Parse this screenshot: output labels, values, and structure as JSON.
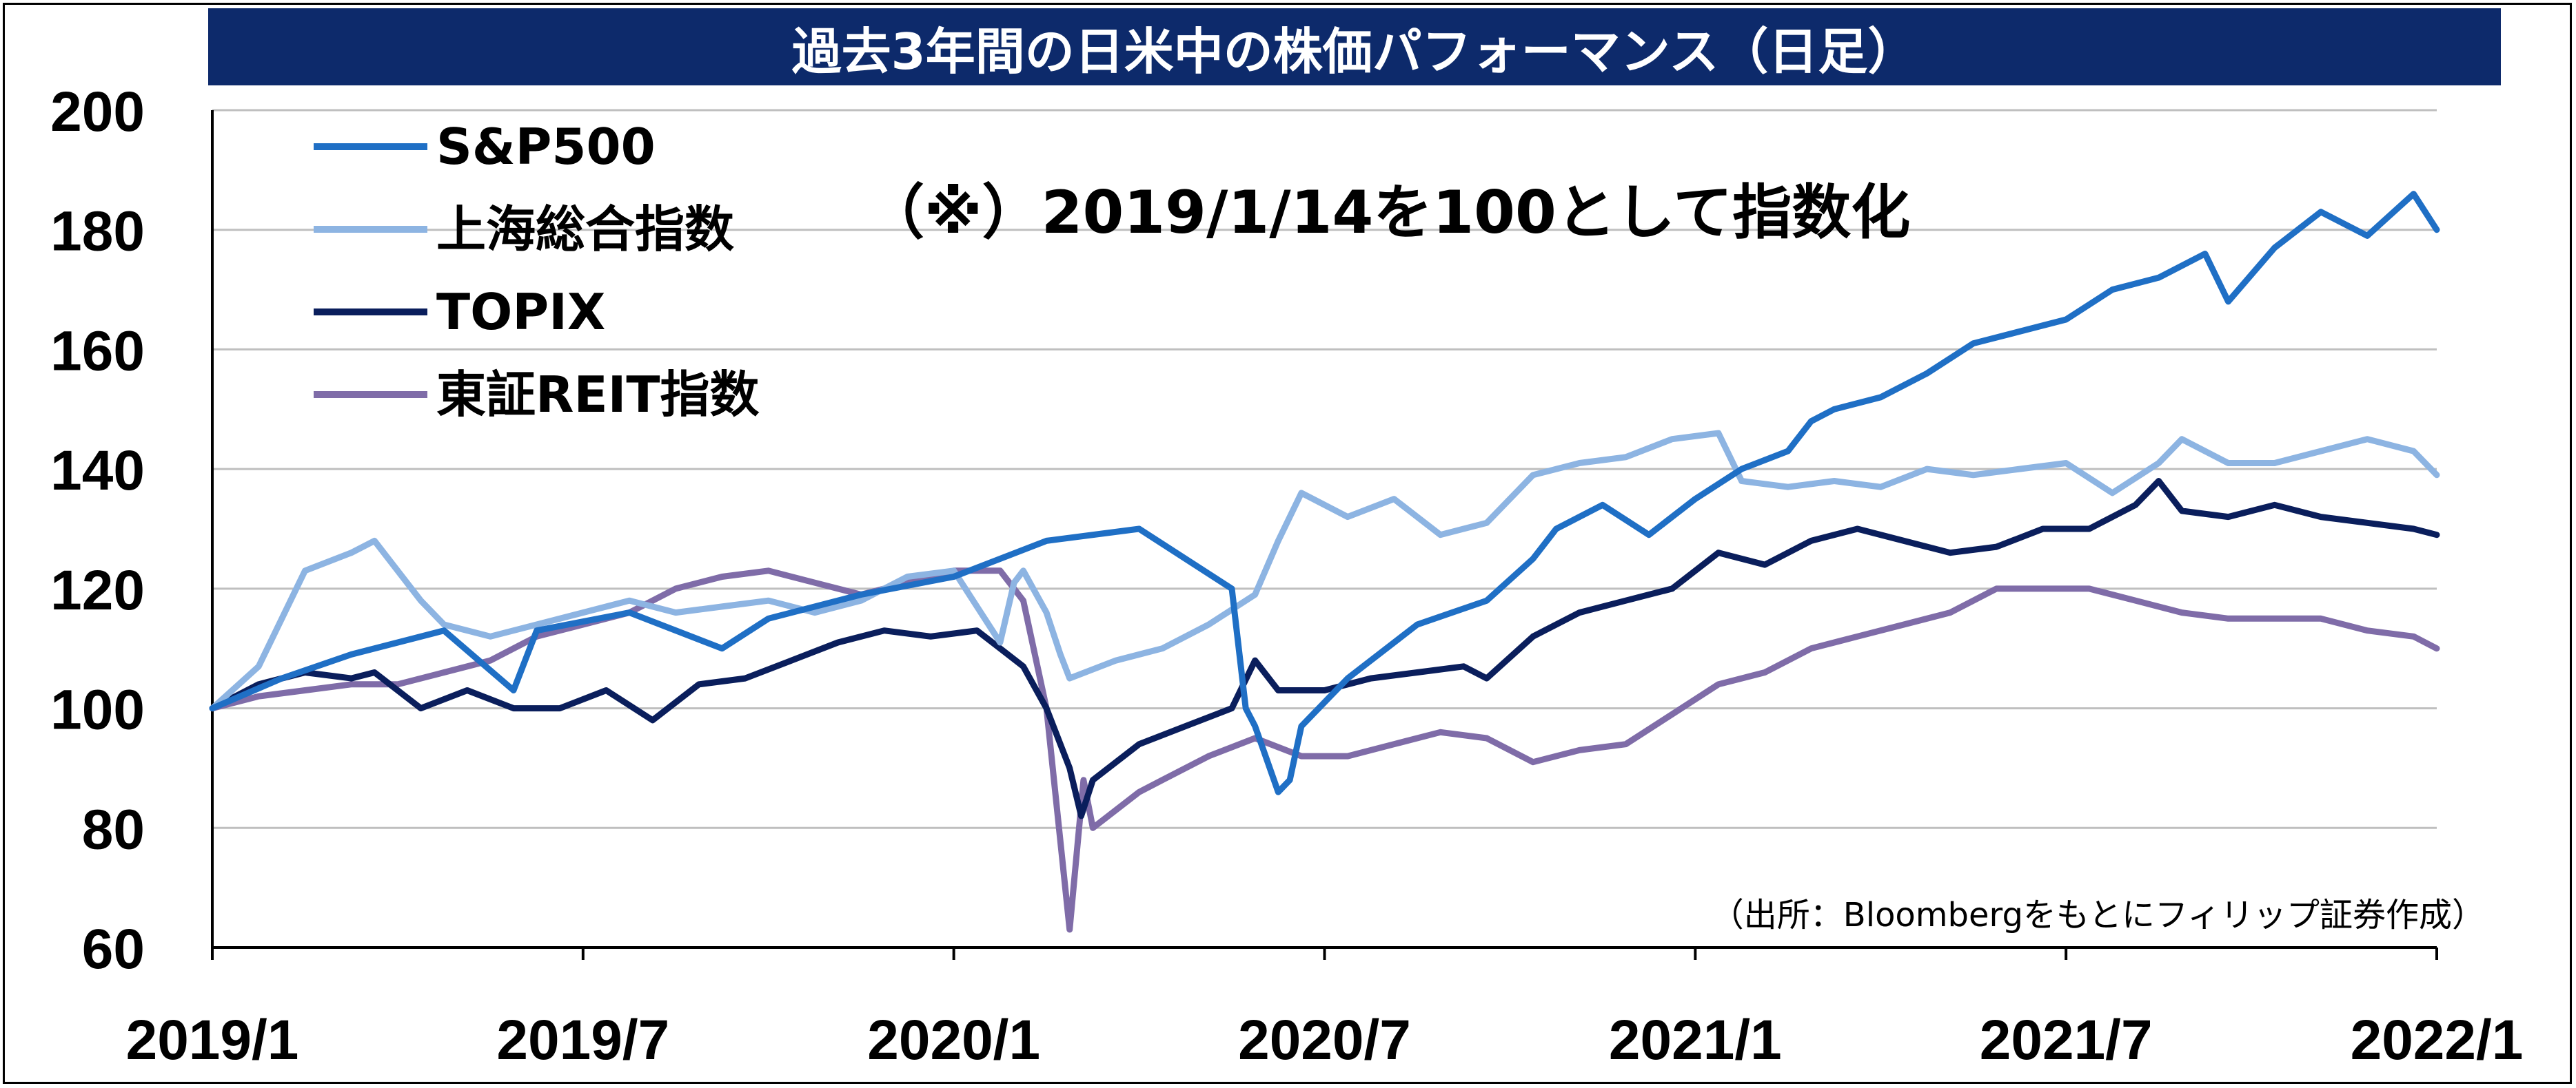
{
  "chart_data": {
    "type": "line",
    "title": "過去3年間の日米中の株価パフォーマンス（日足）",
    "annotation": "（※）2019/1/14を100として指数化",
    "source": "（出所：Bloombergをもとにフィリップ証券作成）",
    "ylim": [
      60,
      200
    ],
    "yticks": [
      "200",
      "180",
      "160",
      "140",
      "120",
      "100",
      "80",
      "60"
    ],
    "xticks": [
      "2019/1",
      "2019/7",
      "2020/1",
      "2020/7",
      "2021/1",
      "2021/7",
      "2022/1"
    ],
    "xlim": [
      "2019/1",
      "2022/1"
    ],
    "grid": "horizontal",
    "legend_position": "top-left",
    "series": [
      {
        "name": "S&P500",
        "color": "#1f6fc5",
        "points": [
          [
            0,
            100
          ],
          [
            3,
            105
          ],
          [
            6,
            109
          ],
          [
            10,
            113
          ],
          [
            13,
            103
          ],
          [
            14,
            113
          ],
          [
            18,
            116
          ],
          [
            22,
            110
          ],
          [
            24,
            115
          ],
          [
            28,
            119
          ],
          [
            32,
            122
          ],
          [
            36,
            128
          ],
          [
            40,
            130
          ],
          [
            44,
            120
          ],
          [
            44.6,
            100
          ],
          [
            45,
            97
          ],
          [
            46,
            86
          ],
          [
            46.5,
            88
          ],
          [
            47,
            97
          ],
          [
            49,
            105
          ],
          [
            52,
            114
          ],
          [
            55,
            118
          ],
          [
            57,
            125
          ],
          [
            58,
            130
          ],
          [
            60,
            134
          ],
          [
            62,
            129
          ],
          [
            64,
            135
          ],
          [
            66,
            140
          ],
          [
            68,
            143
          ],
          [
            69,
            148
          ],
          [
            70,
            150
          ],
          [
            72,
            152
          ],
          [
            74,
            156
          ],
          [
            76,
            161
          ],
          [
            78,
            163
          ],
          [
            80,
            165
          ],
          [
            82,
            170
          ],
          [
            84,
            172
          ],
          [
            86,
            176
          ],
          [
            87,
            168
          ],
          [
            89,
            177
          ],
          [
            91,
            183
          ],
          [
            93,
            179
          ],
          [
            95,
            186
          ],
          [
            96,
            180
          ]
        ]
      },
      {
        "name": "上海総合指数",
        "color": "#8db4e2",
        "points": [
          [
            0,
            100
          ],
          [
            2,
            107
          ],
          [
            4,
            123
          ],
          [
            6,
            126
          ],
          [
            7,
            128
          ],
          [
            9,
            118
          ],
          [
            10,
            114
          ],
          [
            12,
            112
          ],
          [
            14,
            114
          ],
          [
            16,
            116
          ],
          [
            18,
            118
          ],
          [
            20,
            116
          ],
          [
            22,
            117
          ],
          [
            24,
            118
          ],
          [
            26,
            116
          ],
          [
            28,
            118
          ],
          [
            30,
            122
          ],
          [
            32,
            123
          ],
          [
            34,
            111
          ],
          [
            34.6,
            121
          ],
          [
            35,
            123
          ],
          [
            36,
            116
          ],
          [
            36.6,
            109
          ],
          [
            37,
            105
          ],
          [
            39,
            108
          ],
          [
            41,
            110
          ],
          [
            43,
            114
          ],
          [
            45,
            119
          ],
          [
            46,
            128
          ],
          [
            47,
            136
          ],
          [
            49,
            132
          ],
          [
            51,
            135
          ],
          [
            53,
            129
          ],
          [
            55,
            131
          ],
          [
            57,
            139
          ],
          [
            59,
            141
          ],
          [
            61,
            142
          ],
          [
            63,
            145
          ],
          [
            65,
            146
          ],
          [
            66,
            138
          ],
          [
            68,
            137
          ],
          [
            70,
            138
          ],
          [
            72,
            137
          ],
          [
            74,
            140
          ],
          [
            76,
            139
          ],
          [
            78,
            140
          ],
          [
            80,
            141
          ],
          [
            82,
            136
          ],
          [
            84,
            141
          ],
          [
            85,
            145
          ],
          [
            87,
            141
          ],
          [
            89,
            141
          ],
          [
            91,
            143
          ],
          [
            93,
            145
          ],
          [
            95,
            143
          ],
          [
            96,
            139
          ]
        ]
      },
      {
        "name": "TOPIX",
        "color": "#0a1e5c",
        "points": [
          [
            0,
            100
          ],
          [
            2,
            104
          ],
          [
            4,
            106
          ],
          [
            6,
            105
          ],
          [
            7,
            106
          ],
          [
            9,
            100
          ],
          [
            11,
            103
          ],
          [
            13,
            100
          ],
          [
            15,
            100
          ],
          [
            17,
            103
          ],
          [
            19,
            98
          ],
          [
            21,
            104
          ],
          [
            23,
            105
          ],
          [
            25,
            108
          ],
          [
            27,
            111
          ],
          [
            29,
            113
          ],
          [
            31,
            112
          ],
          [
            33,
            113
          ],
          [
            34,
            110
          ],
          [
            35,
            107
          ],
          [
            36,
            100
          ],
          [
            37,
            90
          ],
          [
            37.5,
            82
          ],
          [
            38,
            88
          ],
          [
            40,
            94
          ],
          [
            42,
            97
          ],
          [
            44,
            100
          ],
          [
            45,
            108
          ],
          [
            46,
            103
          ],
          [
            48,
            103
          ],
          [
            50,
            105
          ],
          [
            52,
            106
          ],
          [
            54,
            107
          ],
          [
            55,
            105
          ],
          [
            57,
            112
          ],
          [
            59,
            116
          ],
          [
            61,
            118
          ],
          [
            63,
            120
          ],
          [
            65,
            126
          ],
          [
            67,
            124
          ],
          [
            69,
            128
          ],
          [
            71,
            130
          ],
          [
            73,
            128
          ],
          [
            75,
            126
          ],
          [
            77,
            127
          ],
          [
            79,
            130
          ],
          [
            81,
            130
          ],
          [
            83,
            134
          ],
          [
            84,
            138
          ],
          [
            85,
            133
          ],
          [
            87,
            132
          ],
          [
            89,
            134
          ],
          [
            91,
            132
          ],
          [
            93,
            131
          ],
          [
            95,
            130
          ],
          [
            96,
            129
          ]
        ]
      },
      {
        "name": "東証REIT指数",
        "color": "#7f6ca8",
        "points": [
          [
            0,
            100
          ],
          [
            2,
            102
          ],
          [
            4,
            103
          ],
          [
            6,
            104
          ],
          [
            8,
            104
          ],
          [
            10,
            106
          ],
          [
            12,
            108
          ],
          [
            14,
            112
          ],
          [
            16,
            114
          ],
          [
            18,
            116
          ],
          [
            20,
            120
          ],
          [
            22,
            122
          ],
          [
            24,
            123
          ],
          [
            26,
            121
          ],
          [
            28,
            119
          ],
          [
            30,
            121
          ],
          [
            32,
            123
          ],
          [
            34,
            123
          ],
          [
            35,
            118
          ],
          [
            36,
            100
          ],
          [
            37,
            63
          ],
          [
            37.6,
            88
          ],
          [
            38,
            80
          ],
          [
            40,
            86
          ],
          [
            41,
            88
          ],
          [
            43,
            92
          ],
          [
            45,
            95
          ],
          [
            47,
            92
          ],
          [
            49,
            92
          ],
          [
            51,
            94
          ],
          [
            53,
            96
          ],
          [
            55,
            95
          ],
          [
            57,
            91
          ],
          [
            59,
            93
          ],
          [
            61,
            94
          ],
          [
            63,
            99
          ],
          [
            65,
            104
          ],
          [
            67,
            106
          ],
          [
            69,
            110
          ],
          [
            71,
            112
          ],
          [
            73,
            114
          ],
          [
            75,
            116
          ],
          [
            77,
            120
          ],
          [
            79,
            120
          ],
          [
            81,
            120
          ],
          [
            83,
            118
          ],
          [
            85,
            116
          ],
          [
            87,
            115
          ],
          [
            89,
            115
          ],
          [
            91,
            115
          ],
          [
            93,
            113
          ],
          [
            95,
            112
          ],
          [
            96,
            110
          ]
        ]
      }
    ]
  }
}
